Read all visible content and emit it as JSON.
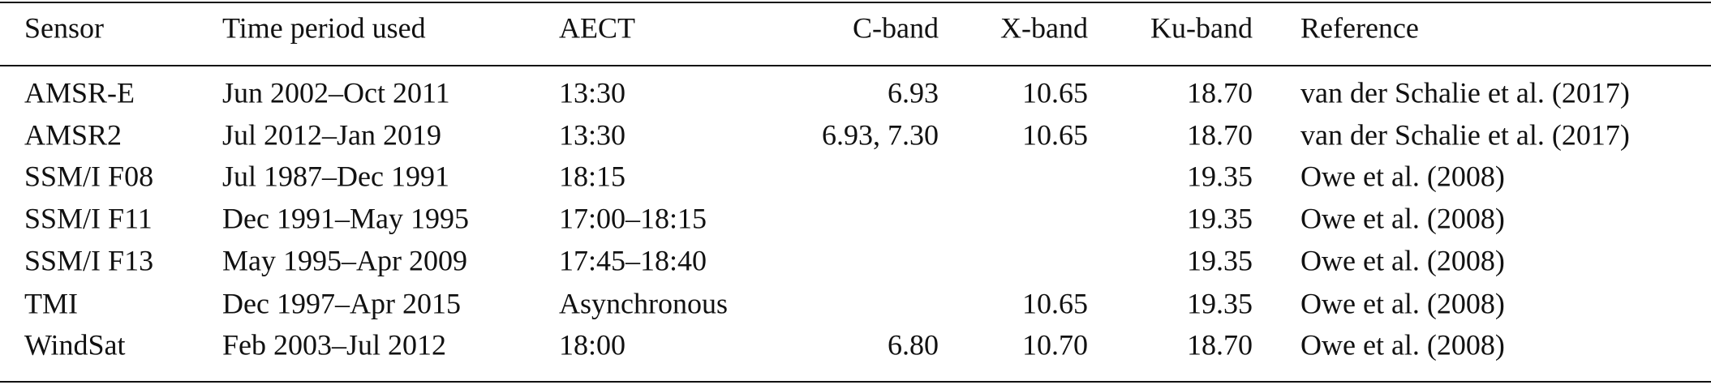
{
  "table": {
    "header": [
      "Sensor",
      "Time period used",
      "AECT",
      "C-band",
      "X-band",
      "Ku-band",
      "Reference"
    ],
    "rows": [
      [
        "AMSR-E",
        "Jun 2002–Oct 2011",
        "13:30",
        "6.93",
        "10.65",
        "18.70",
        "van der Schalie et al. (2017)"
      ],
      [
        "AMSR2",
        "Jul 2012–Jan 2019",
        "13:30",
        "6.93, 7.30",
        "10.65",
        "18.70",
        "van der Schalie et al. (2017)"
      ],
      [
        "SSM/I F08",
        "Jul 1987–Dec 1991",
        "18:15",
        null,
        null,
        "19.35",
        "Owe et al. (2008)"
      ],
      [
        "SSM/I F11",
        "Dec 1991–May 1995",
        "17:00–18:15",
        null,
        null,
        "19.35",
        "Owe et al. (2008)"
      ],
      [
        "SSM/I F13",
        "May 1995–Apr 2009",
        "17:45–18:40",
        null,
        null,
        "19.35",
        "Owe et al. (2008)"
      ],
      [
        "TMI",
        "Dec 1997–Apr 2015",
        "Asynchronous",
        null,
        "10.65",
        "19.35",
        "Owe et al. (2008)"
      ],
      [
        "WindSat",
        "Feb 2003–Jul 2012",
        "18:00",
        "6.80",
        "10.70",
        "18.70",
        "Owe et al. (2008)"
      ]
    ]
  }
}
